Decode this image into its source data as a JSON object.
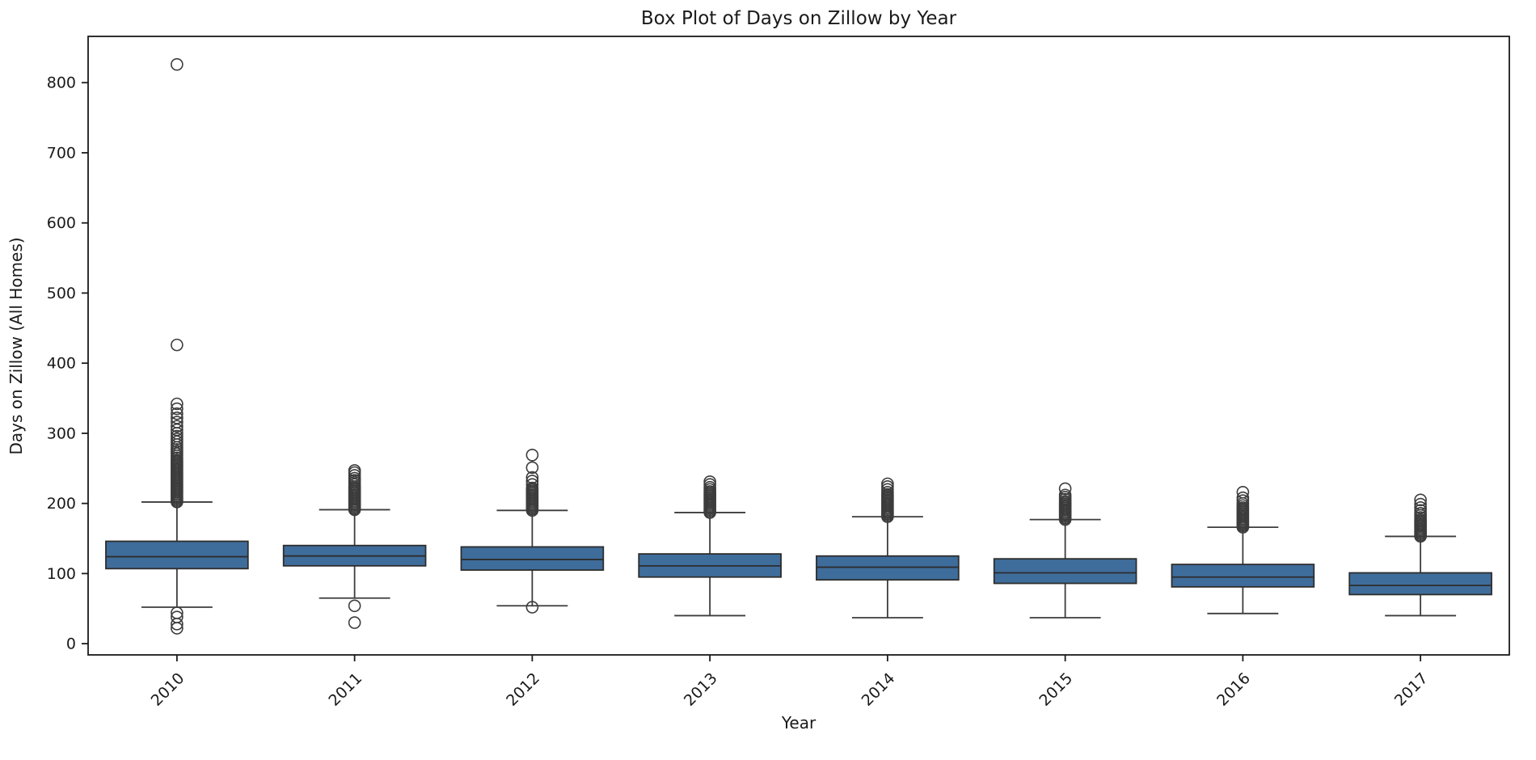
{
  "chart_data": {
    "type": "boxplot",
    "title": "Box Plot of Days on Zillow by Year",
    "xlabel": "Year",
    "ylabel": "Days on Zillow (All Homes)",
    "categories": [
      "2010",
      "2011",
      "2012",
      "2013",
      "2014",
      "2015",
      "2016",
      "2017"
    ],
    "yticks": [
      0,
      100,
      200,
      300,
      400,
      500,
      600,
      700,
      800
    ],
    "ylim": [
      -16,
      866
    ],
    "grid": false,
    "legend": "none",
    "box_fill_color": "#3f6d9b",
    "box_edge_color": "#2d2d2d",
    "whisker_color": "#3c3c3c",
    "outlier_edge_color": "#3c3c3c",
    "spine_color": "#1a1a1a",
    "boxes": [
      {
        "category": "2010",
        "whisker_low": 52,
        "q1": 107,
        "median": 124,
        "q3": 146,
        "whisker_high": 202,
        "outliers_high": [
          202,
          204,
          206,
          208,
          210,
          212,
          214,
          216,
          218,
          220,
          222,
          224,
          226,
          228,
          230,
          232,
          234,
          236,
          238,
          240,
          242,
          244,
          246,
          248,
          250,
          252,
          254,
          256,
          258,
          260,
          262,
          265,
          268,
          271,
          274,
          277,
          280,
          284,
          288,
          292,
          296,
          300,
          305,
          310,
          316,
          322,
          328,
          335,
          342,
          426,
          826
        ],
        "outliers_low": [
          44,
          38,
          28,
          22
        ]
      },
      {
        "category": "2011",
        "whisker_low": 65,
        "q1": 111,
        "median": 125,
        "q3": 140,
        "whisker_high": 191,
        "outliers_high": [
          191,
          192,
          194,
          196,
          198,
          200,
          202,
          204,
          206,
          208,
          210,
          212,
          214,
          216,
          218,
          220,
          222,
          224,
          227,
          230,
          233,
          236,
          240,
          244,
          247
        ],
        "outliers_low": [
          54,
          30
        ]
      },
      {
        "category": "2012",
        "whisker_low": 54,
        "q1": 105,
        "median": 120,
        "q3": 138,
        "whisker_high": 190,
        "outliers_high": [
          190,
          192,
          194,
          196,
          198,
          200,
          202,
          204,
          206,
          208,
          210,
          212,
          214,
          216,
          218,
          220,
          222,
          227,
          232,
          237,
          251,
          269
        ],
        "outliers_low": [
          52
        ]
      },
      {
        "category": "2013",
        "whisker_low": 40,
        "q1": 95,
        "median": 111,
        "q3": 128,
        "whisker_high": 187,
        "outliers_high": [
          187,
          189,
          191,
          193,
          195,
          197,
          199,
          201,
          203,
          205,
          207,
          209,
          211,
          213,
          215,
          217,
          220,
          223,
          227,
          231
        ],
        "outliers_low": []
      },
      {
        "category": "2014",
        "whisker_low": 37,
        "q1": 91,
        "median": 109,
        "q3": 125,
        "whisker_high": 181,
        "outliers_high": [
          181,
          183,
          185,
          187,
          189,
          191,
          193,
          195,
          197,
          199,
          201,
          203,
          205,
          207,
          209,
          211,
          213,
          216,
          220,
          224,
          228
        ],
        "outliers_low": []
      },
      {
        "category": "2015",
        "whisker_low": 37,
        "q1": 86,
        "median": 101,
        "q3": 121,
        "whisker_high": 177,
        "outliers_high": [
          177,
          179,
          181,
          183,
          185,
          187,
          189,
          191,
          193,
          195,
          197,
          199,
          201,
          203,
          206,
          209,
          212,
          221
        ],
        "outliers_low": []
      },
      {
        "category": "2016",
        "whisker_low": 43,
        "q1": 81,
        "median": 95,
        "q3": 113,
        "whisker_high": 166,
        "outliers_high": [
          166,
          168,
          170,
          172,
          174,
          176,
          178,
          180,
          182,
          184,
          186,
          188,
          190,
          192,
          194,
          197,
          200,
          204,
          208,
          216
        ],
        "outliers_low": []
      },
      {
        "category": "2017",
        "whisker_low": 40,
        "q1": 70,
        "median": 83,
        "q3": 101,
        "whisker_high": 153,
        "outliers_high": [
          153,
          155,
          157,
          159,
          161,
          163,
          165,
          167,
          169,
          171,
          173,
          175,
          177,
          180,
          183,
          186,
          190,
          194,
          199,
          205
        ],
        "outliers_low": []
      }
    ]
  }
}
